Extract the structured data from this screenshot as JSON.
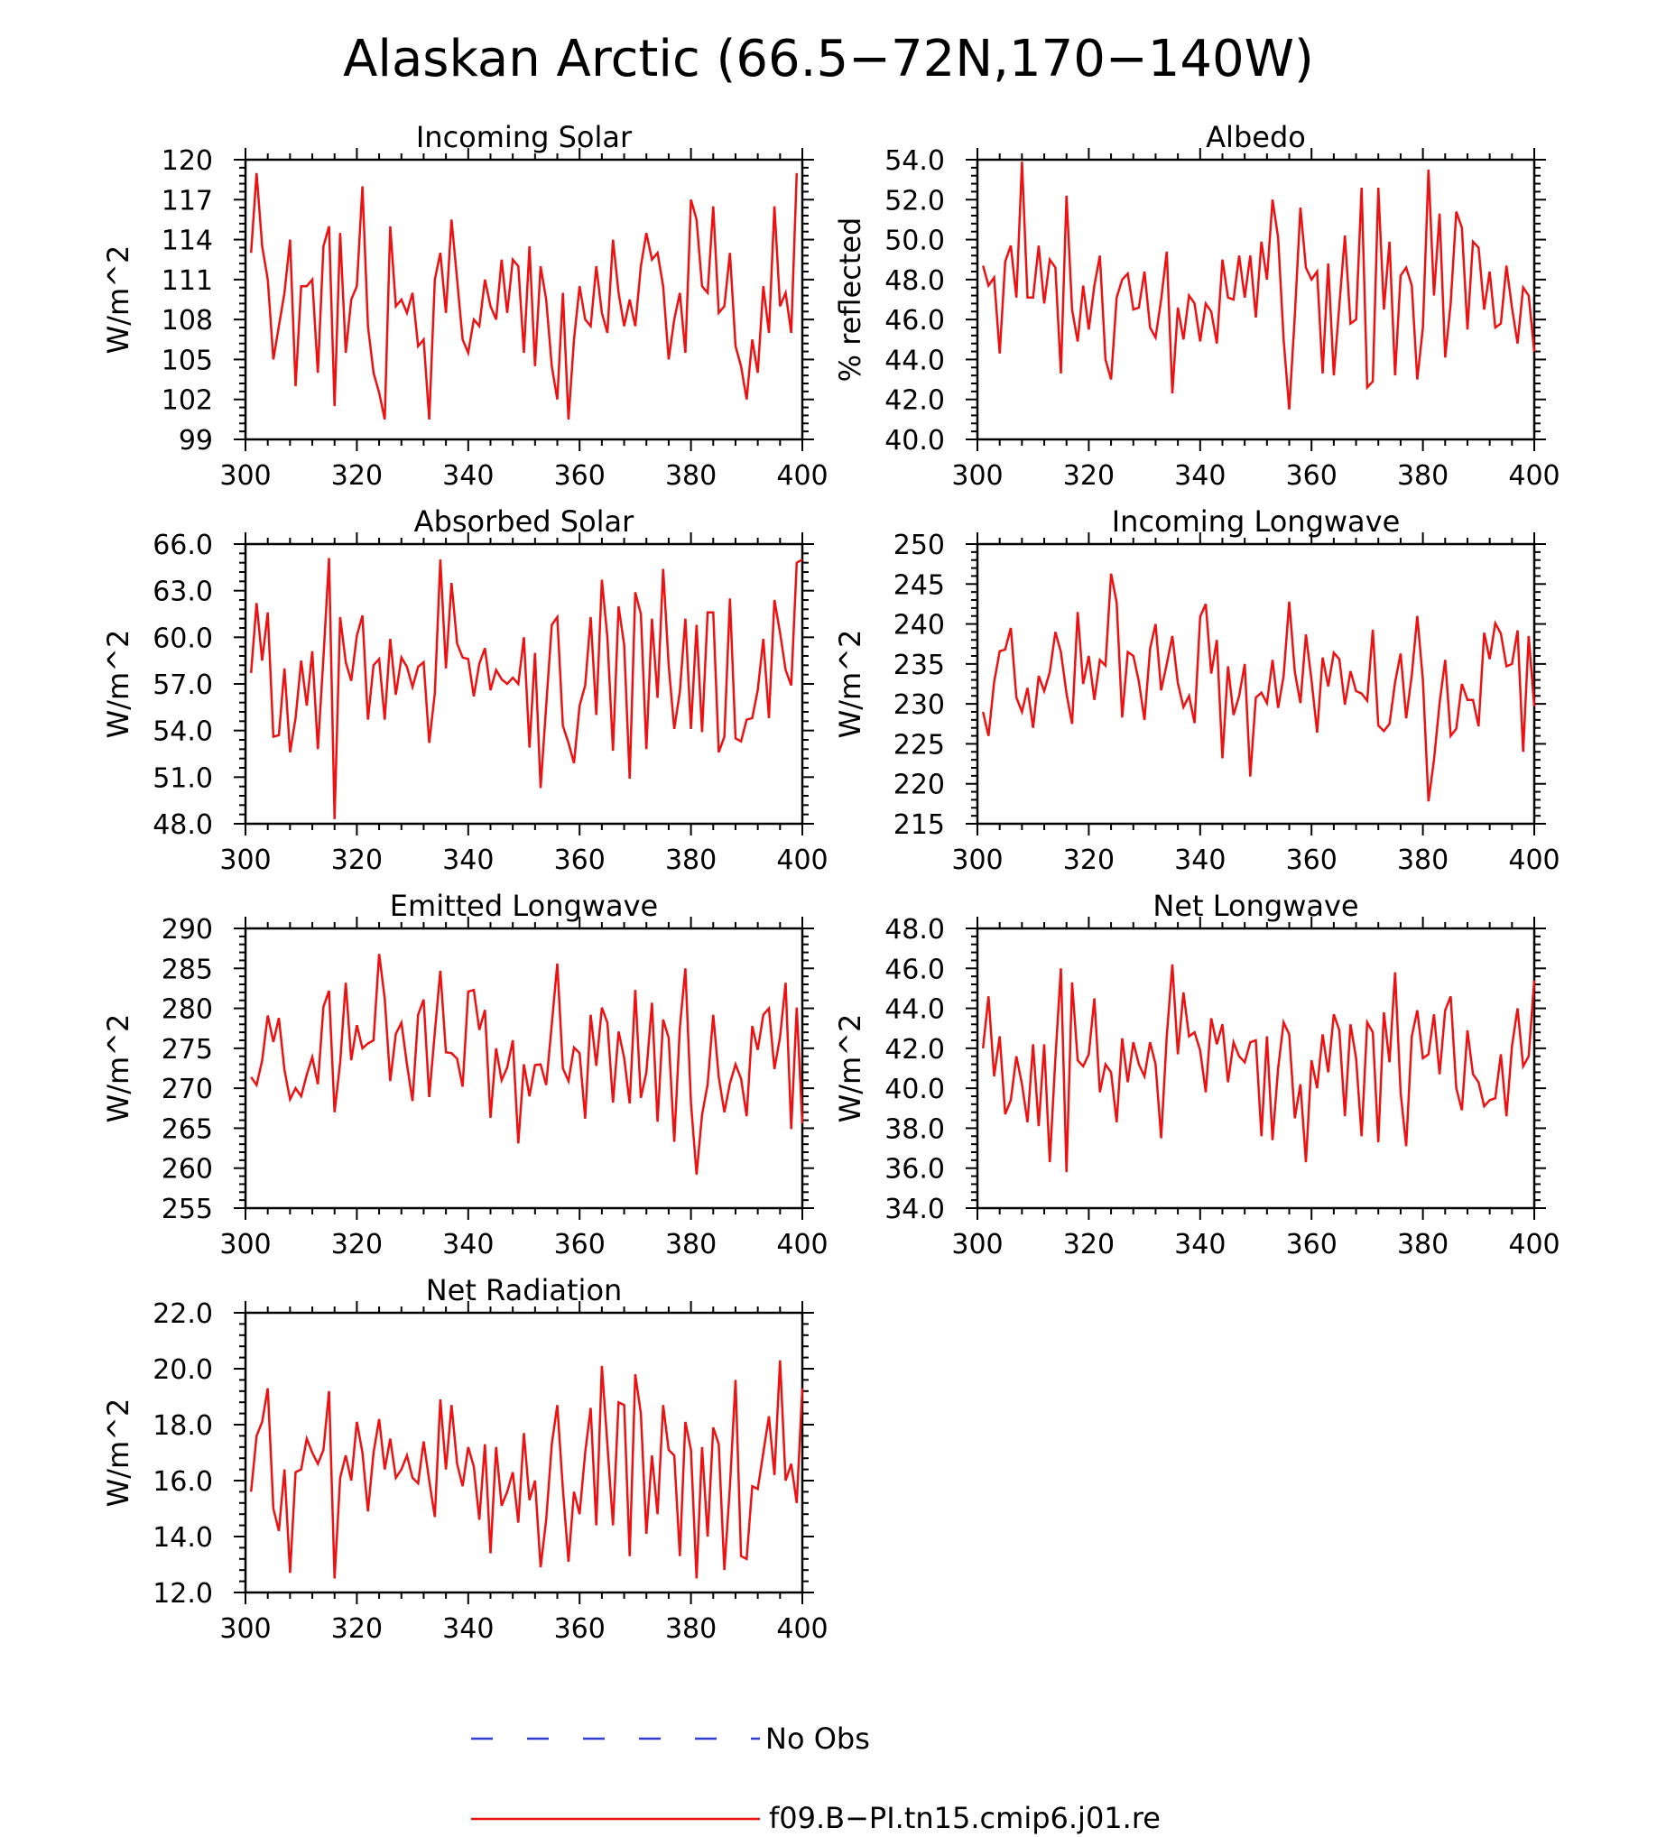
{
  "title": "Alaskan Arctic (66.5−72N,170−140W)",
  "legend": [
    {
      "label": "No Obs",
      "color": "#2f3dd6",
      "style": "dashed"
    },
    {
      "label": "f09.B−PI.tn15.cmip6.j01.re",
      "color": "#ee1111",
      "style": "solid"
    }
  ],
  "chart_data": [
    {
      "type": "line",
      "title": "Incoming Solar",
      "ylabel": "W/m^2",
      "xlim": [
        300,
        400
      ],
      "ylim": [
        99,
        120
      ],
      "xticks": [
        "300",
        "320",
        "340",
        "360",
        "380",
        "400"
      ],
      "yticks": [
        "99",
        "102",
        "105",
        "108",
        "111",
        "114",
        "117",
        "120"
      ],
      "series": [
        {
          "color": "#ee1111",
          "x_start": 301,
          "values": [
            113.0,
            119.0,
            113.5,
            111.0,
            105.0,
            107.5,
            110.0,
            114.0,
            103.0,
            110.5,
            110.5,
            111.0,
            104.0,
            113.5,
            115.0,
            101.5,
            114.5,
            105.5,
            109.5,
            110.5,
            118.0,
            107.5,
            104.0,
            102.5,
            100.5,
            115.0,
            109.0,
            109.5,
            108.5,
            110.0,
            106.0,
            106.5,
            100.5,
            111.0,
            113.0,
            108.5,
            115.5,
            111.0,
            106.5,
            105.5,
            108.0,
            107.5,
            111.0,
            109.0,
            108.0,
            112.5,
            108.5,
            112.5,
            112.0,
            105.5,
            113.5,
            104.5,
            112.0,
            109.5,
            104.5,
            102.0,
            110.0,
            100.5,
            106.5,
            110.5,
            108.0,
            107.5,
            112.0,
            108.5,
            107.0,
            114.0,
            110.0,
            107.5,
            109.5,
            107.5,
            112.0,
            114.5,
            112.5,
            113.0,
            110.5,
            105.0,
            108.0,
            110.0,
            105.5,
            117.0,
            115.5,
            110.5,
            110.0,
            116.5,
            108.5,
            109.0,
            113.0,
            106.0,
            104.5,
            102.0,
            106.5,
            104.0,
            110.5,
            107.0,
            116.5,
            109.0,
            110.0,
            107.0,
            119.0
          ]
        }
      ]
    },
    {
      "type": "line",
      "title": "Albedo",
      "ylabel": "% reflected",
      "xlim": [
        300,
        400
      ],
      "ylim": [
        40,
        54
      ],
      "xticks": [
        "300",
        "320",
        "340",
        "360",
        "380",
        "400"
      ],
      "yticks": [
        "40.0",
        "42.0",
        "44.0",
        "46.0",
        "48.0",
        "50.0",
        "52.0",
        "54.0"
      ],
      "series": [
        {
          "color": "#ee1111",
          "x_start": 301,
          "values": [
            48.7,
            47.7,
            48.1,
            44.3,
            48.9,
            49.7,
            47.1,
            53.9,
            47.1,
            47.1,
            49.7,
            46.8,
            49.0,
            48.6,
            43.3,
            52.2,
            46.5,
            44.9,
            47.7,
            45.5,
            47.7,
            49.2,
            44.0,
            43.0,
            47.1,
            48.0,
            48.3,
            46.5,
            46.6,
            48.4,
            45.6,
            45.1,
            47.0,
            49.4,
            42.3,
            46.6,
            45.0,
            47.2,
            46.8,
            44.9,
            46.8,
            46.4,
            44.8,
            49.0,
            47.1,
            47.0,
            49.2,
            47.1,
            49.2,
            46.1,
            49.9,
            48.0,
            52.0,
            50.1,
            45.0,
            41.5,
            46.2,
            51.6,
            48.6,
            48.0,
            48.4,
            43.3,
            48.8,
            43.2,
            46.7,
            50.2,
            45.8,
            46.0,
            52.6,
            42.6,
            42.9,
            52.6,
            46.5,
            49.9,
            43.2,
            48.2,
            48.6,
            47.7,
            43.0,
            45.6,
            53.5,
            47.2,
            51.3,
            44.1,
            46.8,
            51.4,
            50.6,
            45.5,
            49.9,
            49.6,
            46.5,
            48.4,
            45.6,
            45.8,
            48.7,
            46.6,
            44.8,
            47.6,
            47.2,
            44.4
          ]
        }
      ]
    },
    {
      "type": "line",
      "title": "Absorbed Solar",
      "ylabel": "W/m^2",
      "xlim": [
        300,
        400
      ],
      "ylim": [
        48,
        66
      ],
      "xticks": [
        "300",
        "320",
        "340",
        "360",
        "380",
        "400"
      ],
      "yticks": [
        "48.0",
        "51.0",
        "54.0",
        "57.0",
        "60.0",
        "63.0",
        "66.0"
      ],
      "series": [
        {
          "color": "#ee1111",
          "x_start": 301,
          "values": [
            57.7,
            62.2,
            58.5,
            61.6,
            53.6,
            53.7,
            58.0,
            52.6,
            54.8,
            58.5,
            55.6,
            59.1,
            52.8,
            58.7,
            65.1,
            48.3,
            61.3,
            58.4,
            57.2,
            60.1,
            61.4,
            54.7,
            58.2,
            58.6,
            54.7,
            59.9,
            56.3,
            58.7,
            58.1,
            56.8,
            58.1,
            58.4,
            53.2,
            56.4,
            65.0,
            58.0,
            63.5,
            59.6,
            58.7,
            58.6,
            56.2,
            58.3,
            59.3,
            56.6,
            57.9,
            57.3,
            57.0,
            57.4,
            57.0,
            60.0,
            52.9,
            59.0,
            50.3,
            55.6,
            60.8,
            61.3,
            54.3,
            53.2,
            51.9,
            55.6,
            56.9,
            61.3,
            55.0,
            63.7,
            60.0,
            52.7,
            62.0,
            59.5,
            50.9,
            62.9,
            61.5,
            52.8,
            61.2,
            56.1,
            64.4,
            58.2,
            54.1,
            56.5,
            61.2,
            54.1,
            60.8,
            53.9,
            61.6,
            61.6,
            52.6,
            53.6,
            62.5,
            53.5,
            53.3,
            54.7,
            54.8,
            56.6,
            59.9,
            54.8,
            62.4,
            60.3,
            57.9,
            56.9,
            64.8,
            65.0
          ]
        }
      ]
    },
    {
      "type": "line",
      "title": "Incoming Longwave",
      "ylabel": "W/m^2",
      "xlim": [
        300,
        400
      ],
      "ylim": [
        215,
        250
      ],
      "xticks": [
        "300",
        "320",
        "340",
        "360",
        "380",
        "400"
      ],
      "yticks": [
        "215",
        "220",
        "225",
        "230",
        "235",
        "240",
        "245",
        "250"
      ],
      "series": [
        {
          "color": "#ee1111",
          "x_start": 301,
          "values": [
            229.0,
            226.0,
            232.7,
            236.6,
            236.8,
            239.5,
            230.8,
            229.0,
            232.0,
            227.0,
            233.5,
            231.6,
            234.0,
            239.0,
            236.5,
            231.3,
            227.5,
            241.5,
            232.5,
            236.0,
            230.5,
            235.5,
            234.8,
            246.3,
            242.7,
            228.3,
            236.5,
            236.0,
            232.8,
            228.0,
            236.9,
            240.0,
            231.7,
            235.0,
            238.5,
            232.6,
            229.6,
            231.0,
            227.6,
            240.9,
            242.5,
            233.8,
            238.0,
            223.2,
            234.7,
            228.6,
            231.0,
            235.0,
            220.9,
            230.8,
            231.4,
            230.1,
            235.5,
            229.5,
            233.5,
            242.8,
            234.0,
            230.1,
            238.7,
            233.0,
            226.4,
            235.8,
            232.2,
            236.4,
            235.6,
            229.9,
            234.1,
            231.6,
            231.3,
            230.4,
            239.3,
            227.3,
            226.6,
            227.5,
            232.7,
            236.3,
            228.2,
            233.6,
            241.0,
            233.0,
            217.8,
            223.0,
            230.1,
            235.5,
            226.0,
            226.9,
            232.5,
            230.5,
            230.5,
            227.2,
            238.9,
            235.6,
            240.1,
            238.8,
            234.7,
            235.0,
            239.2,
            224.0,
            238.5,
            229.7
          ]
        }
      ]
    },
    {
      "type": "line",
      "title": "Emitted Longwave",
      "ylabel": "W/m^2",
      "xlim": [
        300,
        400
      ],
      "ylim": [
        255,
        290
      ],
      "xticks": [
        "300",
        "320",
        "340",
        "360",
        "380",
        "400"
      ],
      "yticks": [
        "255",
        "260",
        "265",
        "270",
        "275",
        "280",
        "285",
        "290"
      ],
      "series": [
        {
          "color": "#ee1111",
          "x_start": 301,
          "values": [
            271.4,
            270.4,
            273.5,
            279.1,
            275.8,
            278.8,
            272.3,
            268.6,
            270.0,
            269.0,
            271.7,
            273.9,
            270.5,
            280.2,
            282.2,
            267.0,
            273.2,
            283.2,
            273.5,
            277.9,
            275.0,
            275.6,
            276.0,
            286.8,
            281.2,
            270.9,
            276.8,
            278.2,
            273.0,
            268.4,
            279.2,
            281.1,
            268.9,
            277.0,
            284.7,
            274.5,
            274.4,
            273.7,
            270.2,
            282.1,
            282.3,
            277.3,
            279.8,
            266.3,
            275.0,
            271.0,
            272.6,
            276.0,
            263.1,
            273.0,
            269.0,
            272.9,
            273.0,
            270.4,
            278.0,
            285.6,
            272.5,
            270.9,
            275.1,
            274.4,
            266.2,
            279.2,
            272.8,
            280.1,
            278.2,
            268.2,
            277.1,
            273.8,
            268.1,
            282.3,
            268.8,
            272.0,
            280.7,
            265.8,
            278.6,
            276.3,
            263.3,
            277.6,
            285.0,
            268.2,
            259.2,
            266.7,
            270.5,
            279.2,
            271.4,
            267.0,
            270.6,
            273.0,
            271.2,
            266.5,
            277.8,
            274.8,
            279.2,
            280.0,
            272.4,
            276.4,
            283.2,
            264.9,
            280.1,
            265.6
          ]
        }
      ]
    },
    {
      "type": "line",
      "title": "Net Longwave",
      "ylabel": "W/m^2",
      "xlim": [
        300,
        400
      ],
      "ylim": [
        34,
        48
      ],
      "xticks": [
        "300",
        "320",
        "340",
        "360",
        "380",
        "400"
      ],
      "yticks": [
        "34.0",
        "36.0",
        "38.0",
        "40.0",
        "42.0",
        "44.0",
        "46.0",
        "48.0"
      ],
      "series": [
        {
          "color": "#ee1111",
          "x_start": 301,
          "values": [
            42.0,
            44.6,
            40.6,
            42.6,
            38.7,
            39.4,
            41.6,
            40.2,
            38.3,
            42.2,
            38.1,
            42.2,
            36.3,
            41.5,
            46.0,
            35.8,
            45.3,
            41.4,
            41.1,
            41.7,
            44.5,
            39.8,
            41.2,
            40.8,
            38.3,
            42.5,
            40.3,
            42.3,
            41.2,
            40.6,
            42.3,
            41.2,
            37.5,
            42.6,
            46.2,
            41.7,
            44.8,
            42.6,
            42.8,
            41.9,
            39.8,
            43.5,
            42.2,
            43.2,
            40.3,
            42.3,
            41.6,
            41.3,
            42.3,
            42.4,
            37.6,
            42.6,
            37.4,
            41.0,
            43.3,
            42.7,
            38.5,
            40.2,
            36.3,
            41.4,
            40.0,
            42.7,
            40.8,
            43.7,
            42.9,
            38.6,
            43.2,
            41.5,
            37.6,
            43.3,
            42.8,
            37.3,
            43.8,
            41.3,
            45.8,
            39.8,
            37.1,
            42.6,
            43.9,
            41.5,
            41.7,
            43.7,
            40.7,
            43.9,
            44.6,
            40.0,
            38.9,
            42.9,
            40.7,
            40.3,
            39.1,
            39.4,
            39.5,
            41.7,
            38.6,
            42.1,
            44.0,
            41.1,
            41.6,
            45.4
          ]
        }
      ]
    },
    {
      "type": "line",
      "title": "Net Radiation",
      "ylabel": "W/m^2",
      "xlim": [
        300,
        400
      ],
      "ylim": [
        12,
        22
      ],
      "xticks": [
        "300",
        "320",
        "340",
        "360",
        "380",
        "400"
      ],
      "yticks": [
        "12.0",
        "14.0",
        "16.0",
        "18.0",
        "20.0",
        "22.0"
      ],
      "series": [
        {
          "color": "#ee1111",
          "x_start": 301,
          "values": [
            15.6,
            17.6,
            18.1,
            19.3,
            15.0,
            14.2,
            16.4,
            12.7,
            16.3,
            16.4,
            17.5,
            17.0,
            16.6,
            17.1,
            19.2,
            12.5,
            16.1,
            16.9,
            16.0,
            18.1,
            17.0,
            14.9,
            17.0,
            18.2,
            16.4,
            17.5,
            16.1,
            16.4,
            16.9,
            16.1,
            15.9,
            17.4,
            16.0,
            14.7,
            18.9,
            16.4,
            18.7,
            16.6,
            15.8,
            17.2,
            16.5,
            14.6,
            17.3,
            13.4,
            17.2,
            15.1,
            15.6,
            16.3,
            14.5,
            17.7,
            15.3,
            16.0,
            12.9,
            14.6,
            17.3,
            18.7,
            15.7,
            13.1,
            15.6,
            14.8,
            17.0,
            18.6,
            14.4,
            20.1,
            17.3,
            14.4,
            18.8,
            18.7,
            13.3,
            19.8,
            18.4,
            14.1,
            16.9,
            14.8,
            18.7,
            17.1,
            16.9,
            13.3,
            18.1,
            17.1,
            12.5,
            17.2,
            14.0,
            17.9,
            17.3,
            12.8,
            15.8,
            19.6,
            13.3,
            13.2,
            15.8,
            15.7,
            17.0,
            18.3,
            16.2,
            20.3,
            16.0,
            16.6,
            15.2,
            19.3
          ]
        }
      ]
    }
  ]
}
